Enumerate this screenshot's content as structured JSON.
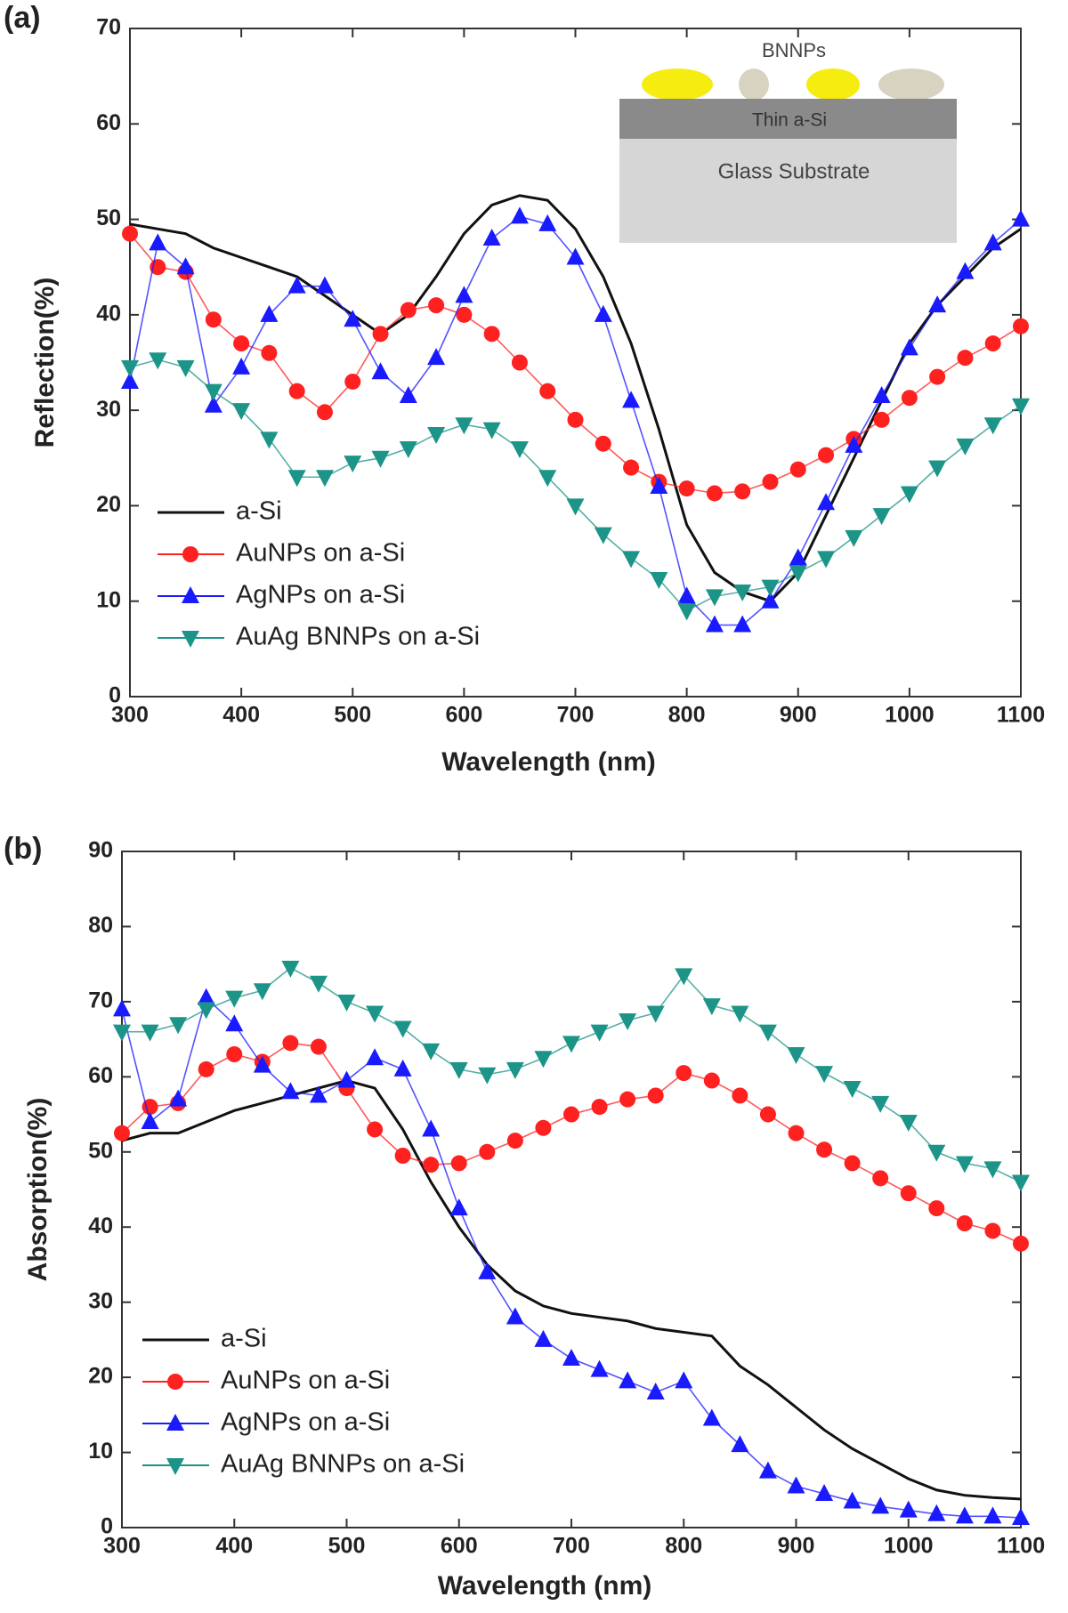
{
  "chart_data": [
    {
      "type": "line",
      "panel_label": "(a)",
      "x_label": "Wavelength (nm)",
      "y_label": "Reflection(%)",
      "inset": {
        "particles": "BNNPs",
        "layer": "Thin a-Si",
        "substrate": "Glass Substrate"
      },
      "x": [
        300,
        325,
        350,
        375,
        400,
        425,
        450,
        475,
        500,
        525,
        550,
        575,
        600,
        625,
        650,
        675,
        700,
        725,
        750,
        775,
        800,
        825,
        850,
        875,
        900,
        925,
        950,
        975,
        1000,
        1025,
        1050,
        1075,
        1100
      ],
      "xlim": [
        300,
        1100
      ],
      "xticks": [
        300,
        400,
        500,
        600,
        700,
        800,
        900,
        1000,
        1100
      ],
      "ylim": [
        0,
        70
      ],
      "yticks": [
        0,
        10,
        20,
        30,
        40,
        50,
        60,
        70
      ],
      "legend": "lower left",
      "series": [
        {
          "name": "a-Si",
          "color": "#111111",
          "marker": "none",
          "values": [
            49.5,
            49,
            48.5,
            47,
            46,
            45,
            44,
            42,
            40,
            38,
            40,
            44,
            48.5,
            51.5,
            52.5,
            52,
            49,
            44,
            37,
            28,
            18,
            13,
            11,
            10,
            13,
            19,
            25,
            31,
            37,
            41,
            44,
            47,
            49
          ]
        },
        {
          "name": "AuNPs on a-Si",
          "color": "#ff2020",
          "marker": "circle",
          "values": [
            48.5,
            45,
            44.5,
            39.5,
            37,
            36,
            32,
            29.8,
            33,
            38,
            40.5,
            41,
            40,
            38,
            35,
            32,
            29,
            26.5,
            24,
            22.5,
            21.8,
            21.3,
            21.5,
            22.5,
            23.8,
            25.3,
            27,
            29,
            31.3,
            33.5,
            35.5,
            37,
            38.8
          ]
        },
        {
          "name": "AgNPs on a-Si",
          "color": "#1a1aff",
          "marker": "triangle-up",
          "values": [
            33,
            47.5,
            45,
            30.5,
            34.5,
            40,
            43,
            43,
            39.5,
            34,
            31.5,
            35.5,
            42,
            48,
            50.3,
            49.5,
            46,
            40,
            31,
            22,
            10.5,
            7.5,
            7.5,
            10,
            14.5,
            20.3,
            26.3,
            31.5,
            36.5,
            41,
            44.5,
            47.5,
            50
          ]
        },
        {
          "name": "AuAg BNNPs on a-Si",
          "color": "#1c9488",
          "marker": "triangle-down",
          "values": [
            34.5,
            35.3,
            34.5,
            32,
            30,
            27,
            23,
            23,
            24.5,
            25,
            26,
            27.5,
            28.5,
            28,
            26,
            23,
            20,
            17,
            14.5,
            12.3,
            9,
            10.5,
            11,
            11.5,
            13,
            14.5,
            16.7,
            19,
            21.3,
            24,
            26.3,
            28.5,
            30.5
          ]
        }
      ]
    },
    {
      "type": "line",
      "panel_label": "(b)",
      "x_label": "Wavelength (nm)",
      "y_label": "Absorption(%)",
      "x": [
        300,
        325,
        350,
        375,
        400,
        425,
        450,
        475,
        500,
        525,
        550,
        575,
        600,
        625,
        650,
        675,
        700,
        725,
        750,
        775,
        800,
        825,
        850,
        875,
        900,
        925,
        950,
        975,
        1000,
        1025,
        1050,
        1075,
        1100
      ],
      "xlim": [
        300,
        1100
      ],
      "xticks": [
        300,
        400,
        500,
        600,
        700,
        800,
        900,
        1000,
        1100
      ],
      "ylim": [
        0,
        90
      ],
      "yticks": [
        0,
        10,
        20,
        30,
        40,
        50,
        60,
        70,
        80,
        90
      ],
      "legend": "lower left",
      "series": [
        {
          "name": "a-Si",
          "color": "#111111",
          "marker": "none",
          "values": [
            51.5,
            52.5,
            52.5,
            54,
            55.5,
            56.5,
            57.5,
            58.5,
            59.5,
            58.5,
            53,
            46,
            40,
            35,
            31.5,
            29.5,
            28.5,
            28,
            27.5,
            26.5,
            26,
            25.5,
            21.5,
            19,
            16,
            13,
            10.5,
            8.5,
            6.5,
            5,
            4.3,
            4,
            3.8
          ]
        },
        {
          "name": "AuNPs on a-Si",
          "color": "#ff2020",
          "marker": "circle",
          "values": [
            52.5,
            56,
            56.5,
            61,
            63,
            62,
            64.5,
            64,
            58.5,
            53,
            49.5,
            48.3,
            48.5,
            50,
            51.5,
            53.2,
            55,
            56,
            57,
            57.5,
            60.5,
            59.5,
            57.5,
            55,
            52.5,
            50.3,
            48.5,
            46.5,
            44.5,
            42.5,
            40.5,
            39.5,
            37.8
          ]
        },
        {
          "name": "AgNPs on a-Si",
          "color": "#1a1aff",
          "marker": "triangle-up",
          "values": [
            69,
            54,
            57,
            70.5,
            67,
            61.5,
            58,
            57.5,
            59.5,
            62.5,
            61,
            53,
            42.5,
            34,
            28,
            25,
            22.5,
            21,
            19.5,
            18,
            19.5,
            14.5,
            11,
            7.5,
            5.5,
            4.5,
            3.5,
            2.8,
            2.3,
            1.8,
            1.5,
            1.5,
            1.3
          ]
        },
        {
          "name": "AuAg BNNPs on a-Si",
          "color": "#1c9488",
          "marker": "triangle-down",
          "values": [
            66,
            66,
            67,
            69,
            70.5,
            71.5,
            74.5,
            72.5,
            70,
            68.5,
            66.5,
            63.5,
            61,
            60.3,
            61,
            62.5,
            64.5,
            66,
            67.5,
            68.5,
            73.5,
            69.5,
            68.5,
            66,
            63,
            60.5,
            58.5,
            56.5,
            54,
            50,
            48.5,
            47.8,
            46
          ]
        }
      ]
    }
  ]
}
